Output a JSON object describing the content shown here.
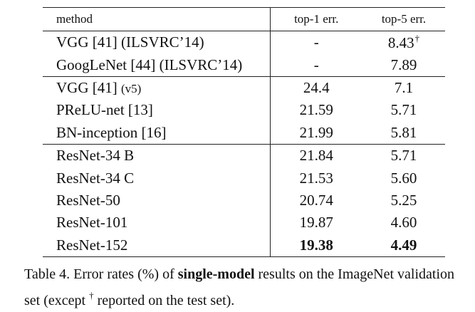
{
  "table": {
    "headers": {
      "method": "method",
      "top1": "top-1 err.",
      "top5": "top-5 err."
    },
    "groups": [
      [
        {
          "method": "VGG [41] (ILSVRC’14)",
          "method_small": "",
          "top1": "-",
          "top5": "8.43",
          "top5_mark": "†",
          "bold": false
        },
        {
          "method": "GoogLeNet [44] (ILSVRC’14)",
          "method_small": "",
          "top1": "-",
          "top5": "7.89",
          "top5_mark": "",
          "bold": false
        }
      ],
      [
        {
          "method": "VGG [41]",
          "method_small": "(v5)",
          "top1": "24.4",
          "top5": "7.1",
          "top5_mark": "",
          "bold": false
        },
        {
          "method": "PReLU-net [13]",
          "method_small": "",
          "top1": "21.59",
          "top5": "5.71",
          "top5_mark": "",
          "bold": false
        },
        {
          "method": "BN-inception [16]",
          "method_small": "",
          "top1": "21.99",
          "top5": "5.81",
          "top5_mark": "",
          "bold": false
        }
      ],
      [
        {
          "method": "ResNet-34 B",
          "method_small": "",
          "top1": "21.84",
          "top5": "5.71",
          "top5_mark": "",
          "bold": false
        },
        {
          "method": "ResNet-34 C",
          "method_small": "",
          "top1": "21.53",
          "top5": "5.60",
          "top5_mark": "",
          "bold": false
        },
        {
          "method": "ResNet-50",
          "method_small": "",
          "top1": "20.74",
          "top5": "5.25",
          "top5_mark": "",
          "bold": false
        },
        {
          "method": "ResNet-101",
          "method_small": "",
          "top1": "19.87",
          "top5": "4.60",
          "top5_mark": "",
          "bold": false
        },
        {
          "method": "ResNet-152",
          "method_small": "",
          "top1": "19.38",
          "top5": "4.49",
          "top5_mark": "",
          "bold": true
        }
      ]
    ]
  },
  "caption": {
    "prefix": "Table 4. Error rates (%) of ",
    "bold": "single-model",
    "middle": " results on the ImageNet validation set (except ",
    "dagger": "†",
    "suffix": " reported on the test set)."
  }
}
